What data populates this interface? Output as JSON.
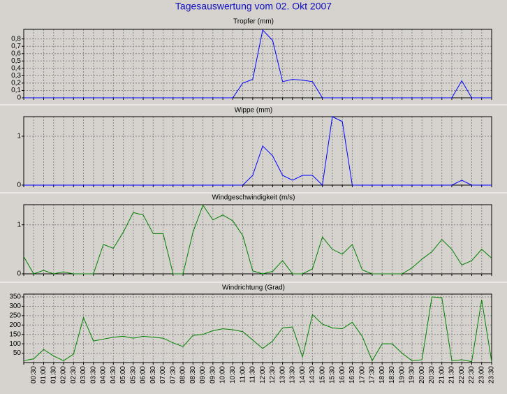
{
  "title": "Tagesauswertung vom 02. Okt 2007",
  "chart_data": [
    {
      "type": "line",
      "title": "Tropfer (mm)",
      "series": [
        {
          "color": "#0000ff",
          "values": [
            0,
            0,
            0,
            0,
            0,
            0,
            0,
            0,
            0,
            0,
            0,
            0,
            0,
            0,
            0,
            0,
            0,
            0,
            0,
            0,
            0,
            0,
            0.2,
            0.25,
            0.92,
            0.78,
            0.22,
            0.25,
            0.24,
            0.22,
            0,
            0,
            0,
            0,
            0,
            0,
            0,
            0,
            0,
            0,
            0,
            0,
            0,
            0,
            0.23,
            0,
            0,
            0
          ]
        }
      ],
      "ylim": [
        0,
        0.93
      ],
      "yticks": [
        0,
        {
          "value": 0.1,
          "label": "0,1"
        },
        {
          "value": 0.2,
          "label": "0,2"
        },
        {
          "value": 0.3,
          "label": "0,3"
        },
        {
          "value": 0.4,
          "label": "0,4"
        },
        {
          "value": 0.5,
          "label": "0,5"
        },
        {
          "value": 0.6,
          "label": "0,6"
        },
        {
          "value": 0.7,
          "label": "0,7"
        },
        {
          "value": 0.8,
          "label": "0,8"
        }
      ],
      "grid": true
    },
    {
      "type": "line",
      "title": "Wippe (mm)",
      "series": [
        {
          "color": "#0000ff",
          "values": [
            0,
            0,
            0,
            0,
            0,
            0,
            0,
            0,
            0,
            0,
            0,
            0,
            0,
            0,
            0,
            0,
            0,
            0,
            0,
            0,
            0,
            0,
            0,
            0.2,
            0.8,
            0.6,
            0.2,
            0.1,
            0.2,
            0.2,
            0,
            1.4,
            1.3,
            0,
            0,
            0,
            0,
            0,
            0,
            0,
            0,
            0,
            0,
            0,
            0.1,
            0,
            0,
            0
          ]
        }
      ],
      "ylim": [
        0,
        1.4
      ],
      "yticks": [
        0,
        1
      ],
      "grid": true
    },
    {
      "type": "line",
      "title": "Windgeschwindigkeit (m/s)",
      "series": [
        {
          "color": "#008000",
          "values": [
            0.35,
            0,
            0.07,
            0,
            0.04,
            0,
            0,
            0,
            0.6,
            0.52,
            0.85,
            1.25,
            1.2,
            0.82,
            0.82,
            0,
            0,
            0.85,
            1.4,
            1.1,
            1.2,
            1.08,
            0.78,
            0.06,
            0,
            0.05,
            0.27,
            0,
            0,
            0.1,
            0.75,
            0.5,
            0.4,
            0.6,
            0.08,
            0,
            0,
            0,
            0,
            0.12,
            0.3,
            0.45,
            0.7,
            0.5,
            0.18,
            0.27,
            0.5,
            0.32
          ]
        }
      ],
      "ylim": [
        0,
        1.41
      ],
      "yticks": [
        0,
        1
      ],
      "grid": true
    },
    {
      "type": "line",
      "title": "Windrichtung (Grad)",
      "categories": [
        null,
        "00:30",
        "01:00",
        "01:30",
        "02:00",
        "02:30",
        "03:00",
        "03:30",
        "04:00",
        "04:30",
        "05:00",
        "05:30",
        "06:00",
        "06:30",
        "07:00",
        "07:30",
        "08:00",
        "08:30",
        "09:00",
        "09:30",
        "10:00",
        "10:30",
        "11:00",
        "11:30",
        "12:00",
        "12:30",
        "13:00",
        "13:30",
        "14:00",
        "14:30",
        "15:00",
        "15:30",
        "16:00",
        "16:30",
        "17:00",
        "17:30",
        "18:00",
        "18:30",
        "19:00",
        "19:30",
        "20:00",
        "20:30",
        "21:00",
        "21:30",
        "22:00",
        "22:30",
        "23:00",
        "23:30"
      ],
      "series": [
        {
          "color": "#008000",
          "values": [
            10,
            20,
            70,
            35,
            10,
            45,
            240,
            115,
            125,
            135,
            140,
            130,
            140,
            135,
            130,
            105,
            85,
            145,
            150,
            170,
            180,
            175,
            165,
            120,
            75,
            115,
            185,
            190,
            30,
            255,
            205,
            185,
            180,
            215,
            140,
            10,
            100,
            100,
            50,
            10,
            15,
            350,
            345,
            10,
            15,
            5,
            335,
            5
          ]
        }
      ],
      "ylim": [
        0,
        365
      ],
      "yticks": [
        50,
        100,
        150,
        200,
        250,
        300,
        350
      ],
      "grid": true
    }
  ]
}
